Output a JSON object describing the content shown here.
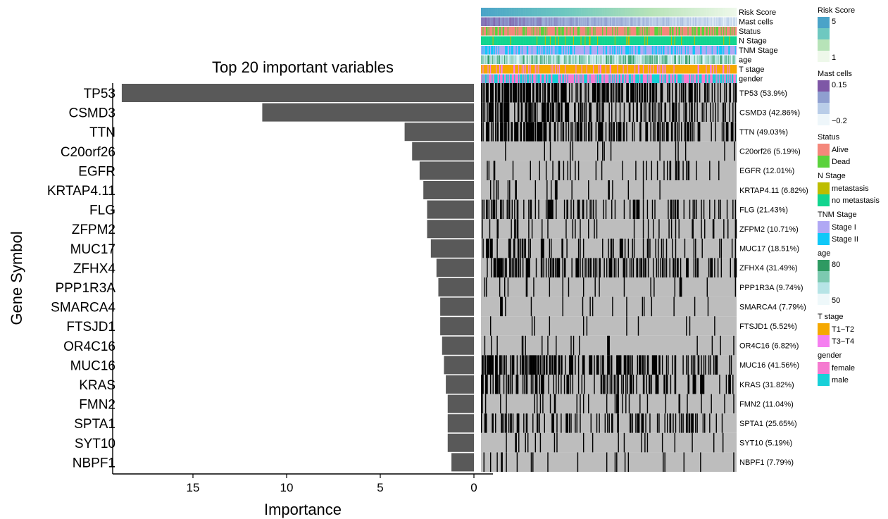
{
  "chart_data": [
    {
      "type": "bar",
      "orientation": "horizontal",
      "title": "Top 20 important variables",
      "xlabel": "Importance",
      "ylabel": "Gene Symbol",
      "xlim": [
        0,
        19
      ],
      "x_reversed": true,
      "xticks": [
        "15",
        "10",
        "5",
        "0"
      ],
      "categories": [
        "TP53",
        "CSMD3",
        "TTN",
        "C20orf26",
        "EGFR",
        "KRTAP4.11",
        "FLG",
        "ZFPM2",
        "MUC17",
        "ZFHX4",
        "PPP1R3A",
        "SMARCA4",
        "FTSJD1",
        "OR4C16",
        "MUC16",
        "KRAS",
        "FMN2",
        "SPTA1",
        "SYT10",
        "NBPF1"
      ],
      "values": [
        18.8,
        11.3,
        3.7,
        3.3,
        2.9,
        2.7,
        2.5,
        2.5,
        2.3,
        2.0,
        1.9,
        1.8,
        1.8,
        1.7,
        1.6,
        1.5,
        1.4,
        1.4,
        1.4,
        1.2
      ],
      "bar_color": "#595959"
    },
    {
      "type": "heatmap",
      "annotation_tracks": [
        "Risk Score",
        "Mast cells",
        "Status",
        "N Stage",
        "TNM Stage",
        "age",
        "T stage",
        "gender"
      ],
      "gene_labels": [
        "TP53 (53.9%)",
        "CSMD3 (42.86%)",
        "TTN (49.03%)",
        "C20orf26 (5.19%)",
        "EGFR (12.01%)",
        "KRTAP4.11 (6.82%)",
        "FLG (21.43%)",
        "ZFPM2 (10.71%)",
        "MUC17 (18.51%)",
        "ZFHX4 (31.49%)",
        "PPP1R3A (9.74%)",
        "SMARCA4 (7.79%)",
        "FTSJD1 (5.52%)",
        "OR4C16 (6.82%)",
        "MUC16 (41.56%)",
        "KRAS (31.82%)",
        "FMN2 (11.04%)",
        "SPTA1 (25.65%)",
        "SYT10 (5.19%)",
        "NBPF1 (7.79%)"
      ],
      "mutation_rates": [
        0.539,
        0.4286,
        0.4903,
        0.0519,
        0.1201,
        0.0682,
        0.2143,
        0.1071,
        0.1851,
        0.3149,
        0.0974,
        0.0779,
        0.0552,
        0.0682,
        0.4156,
        0.3182,
        0.1104,
        0.2565,
        0.0519,
        0.0779
      ],
      "colors": {
        "mutated": "#000000",
        "wildtype": "#bdbdbd"
      },
      "legends": [
        {
          "title": "Risk Score",
          "type": "gradient",
          "labels": [
            "5",
            "1"
          ],
          "colors": [
            "#4aa3c8",
            "#6ec8c0",
            "#b7e3b8",
            "#eef8ea"
          ]
        },
        {
          "title": "Mast cells",
          "type": "gradient",
          "labels": [
            "0.15",
            "−0.2"
          ],
          "colors": [
            "#7e57a6",
            "#8f9fd0",
            "#b9cde8",
            "#eef6fa"
          ]
        },
        {
          "title": "Status",
          "type": "discrete",
          "items": [
            {
              "label": "Alive",
              "color": "#f4877b"
            },
            {
              "label": "Dead",
              "color": "#5bd23c"
            }
          ]
        },
        {
          "title": "N Stage",
          "type": "discrete",
          "items": [
            {
              "label": "metastasis",
              "color": "#bdbd00"
            },
            {
              "label": "no metastasis",
              "color": "#12d58f"
            }
          ]
        },
        {
          "title": "TNM Stage",
          "type": "discrete",
          "items": [
            {
              "label": "Stage I",
              "color": "#b0a8f4"
            },
            {
              "label": "Stage II",
              "color": "#10c8f8"
            }
          ]
        },
        {
          "title": "age",
          "type": "gradient",
          "labels": [
            "80",
            "50"
          ],
          "colors": [
            "#2e9a62",
            "#7cc9b0",
            "#b6e4e6",
            "#eef8fa"
          ]
        },
        {
          "title": "T stage",
          "type": "discrete",
          "items": [
            {
              "label": "T1−T2",
              "color": "#f5a800"
            },
            {
              "label": "T3−T4",
              "color": "#f57ef0"
            }
          ]
        },
        {
          "title": "gender",
          "type": "discrete",
          "items": [
            {
              "label": "female",
              "color": "#f57ad0"
            },
            {
              "label": "male",
              "color": "#17d0d8"
            }
          ]
        }
      ]
    }
  ]
}
